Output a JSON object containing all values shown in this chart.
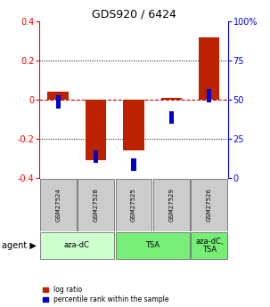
{
  "title": "GDS920 / 6424",
  "samples": [
    "GSM27524",
    "GSM27528",
    "GSM27525",
    "GSM27529",
    "GSM27526"
  ],
  "log_ratio": [
    0.04,
    -0.31,
    -0.26,
    0.01,
    0.32
  ],
  "percentile_rank": [
    52,
    17,
    12,
    42,
    56
  ],
  "bar_color_red": "#bb2200",
  "bar_color_blue": "#0000cc",
  "ylim_left": [
    -0.4,
    0.4
  ],
  "ylim_right": [
    0,
    100
  ],
  "yticks_left": [
    -0.4,
    -0.2,
    0.0,
    0.2,
    0.4
  ],
  "ytick_labels_left": [
    "-0.4",
    "-0.2",
    "0",
    "0.2",
    "0.4"
  ],
  "yticks_right": [
    0,
    25,
    50,
    75,
    100
  ],
  "ytick_labels_right": [
    "0",
    "25",
    "50",
    "75",
    "100%"
  ],
  "group_spans": [
    {
      "label": "aza-dC",
      "start": 0,
      "end": 1,
      "color": "#ccffcc"
    },
    {
      "label": "TSA",
      "start": 2,
      "end": 3,
      "color": "#77ee77"
    },
    {
      "label": "aza-dC,\nTSA",
      "start": 4,
      "end": 4,
      "color": "#77ee77"
    }
  ],
  "legend_red": "log ratio",
  "legend_blue": "percentile rank within the sample",
  "bar_width": 0.55,
  "blue_sq_size": 0.12,
  "hline_color": "#cc0000",
  "sample_bg_color": "#cccccc",
  "white_bg": "#ffffff"
}
